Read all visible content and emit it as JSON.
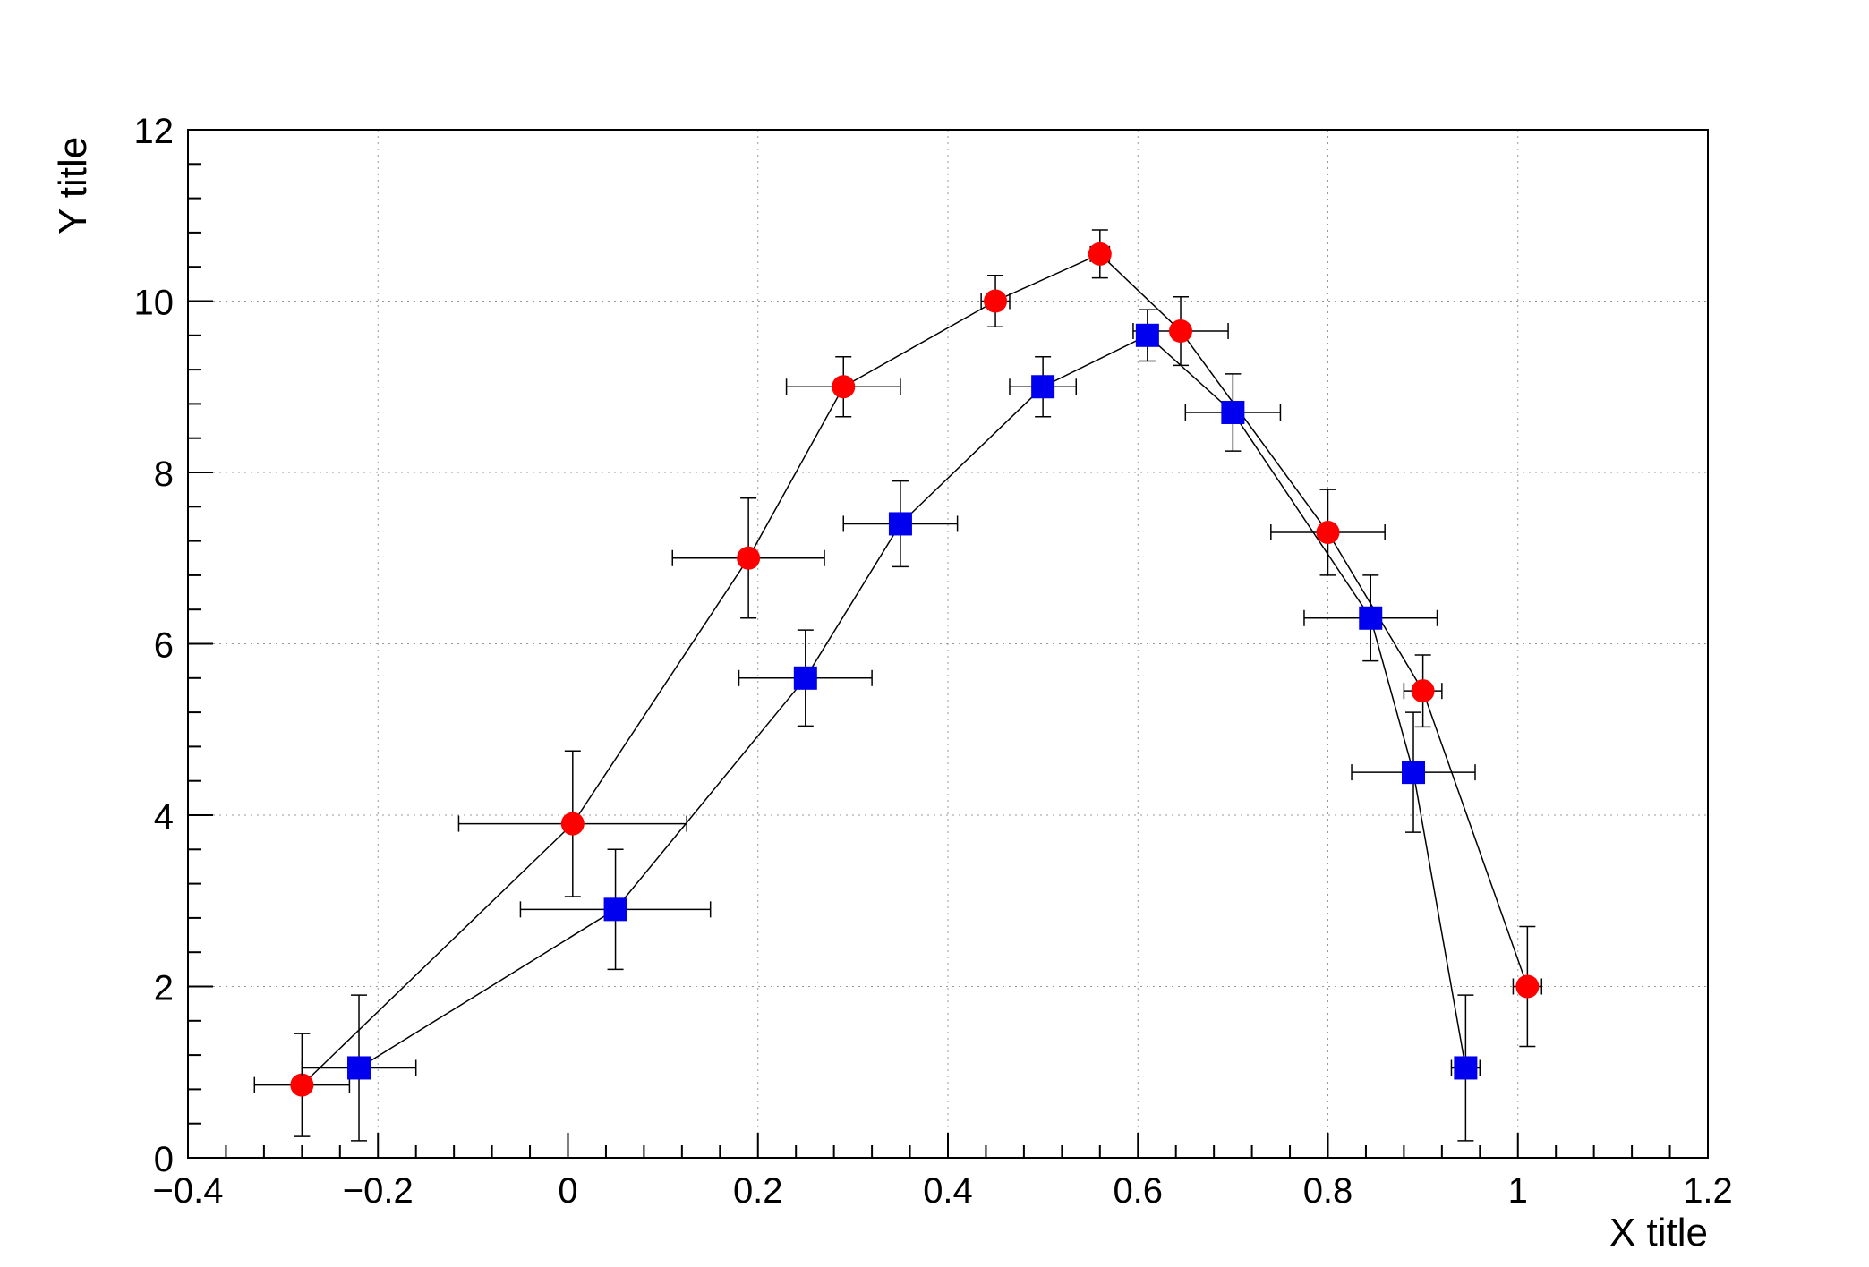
{
  "figure": {
    "background": "#ffffff"
  },
  "chart_data": {
    "type": "scatter",
    "title": "",
    "xlabel": "X title",
    "ylabel": "Y title",
    "xlim": [
      -0.4,
      1.2
    ],
    "ylim": [
      0,
      12
    ],
    "grid": true,
    "grid_color": "#999999",
    "frame_color": "#000000",
    "x_major_ticks": [
      -0.4,
      -0.2,
      0,
      0.2,
      0.4,
      0.6,
      0.8,
      1,
      1.2
    ],
    "x_tick_labels": [
      "−0.4",
      "−0.2",
      "0",
      "0.2",
      "0.4",
      "0.6",
      "0.8",
      "1",
      "1.2"
    ],
    "y_major_ticks": [
      0,
      2,
      4,
      6,
      8,
      10,
      12
    ],
    "y_tick_labels": [
      "0",
      "2",
      "4",
      "6",
      "8",
      "10",
      "12"
    ],
    "x_minor_per_major": 5,
    "y_minor_per_major": 5,
    "series": [
      {
        "name": "red-circles",
        "marker": "circle",
        "color": "#ff0000",
        "line_color": "#000000",
        "points": [
          {
            "x": -0.28,
            "y": 0.85,
            "ex": 0.05,
            "ey": 0.6
          },
          {
            "x": 0.005,
            "y": 3.9,
            "ex": 0.12,
            "ey": 0.85
          },
          {
            "x": 0.19,
            "y": 7.0,
            "ex": 0.08,
            "ey": 0.7
          },
          {
            "x": 0.29,
            "y": 9.0,
            "ex": 0.06,
            "ey": 0.35
          },
          {
            "x": 0.45,
            "y": 10.0,
            "ex": 0.015,
            "ey": 0.3
          },
          {
            "x": 0.56,
            "y": 10.55,
            "ex": 0.01,
            "ey": 0.28
          },
          {
            "x": 0.645,
            "y": 9.65,
            "ex": 0.05,
            "ey": 0.4
          },
          {
            "x": 0.8,
            "y": 7.3,
            "ex": 0.06,
            "ey": 0.5
          },
          {
            "x": 0.9,
            "y": 5.45,
            "ex": 0.02,
            "ey": 0.42
          },
          {
            "x": 1.01,
            "y": 2.0,
            "ex": 0.015,
            "ey": 0.7
          }
        ]
      },
      {
        "name": "blue-squares",
        "marker": "square",
        "color": "#0000ee",
        "line_color": "#000000",
        "points": [
          {
            "x": -0.22,
            "y": 1.05,
            "ex": 0.06,
            "ey": 0.85
          },
          {
            "x": 0.05,
            "y": 2.9,
            "ex": 0.1,
            "ey": 0.7
          },
          {
            "x": 0.25,
            "y": 5.6,
            "ex": 0.07,
            "ey": 0.56
          },
          {
            "x": 0.35,
            "y": 7.4,
            "ex": 0.06,
            "ey": 0.5
          },
          {
            "x": 0.5,
            "y": 9.0,
            "ex": 0.035,
            "ey": 0.35
          },
          {
            "x": 0.61,
            "y": 9.6,
            "ex": 0.01,
            "ey": 0.3
          },
          {
            "x": 0.7,
            "y": 8.7,
            "ex": 0.05,
            "ey": 0.45
          },
          {
            "x": 0.845,
            "y": 6.3,
            "ex": 0.07,
            "ey": 0.5
          },
          {
            "x": 0.89,
            "y": 4.5,
            "ex": 0.065,
            "ey": 0.7
          },
          {
            "x": 0.945,
            "y": 1.05,
            "ex": 0.015,
            "ey": 0.85
          }
        ]
      }
    ]
  }
}
